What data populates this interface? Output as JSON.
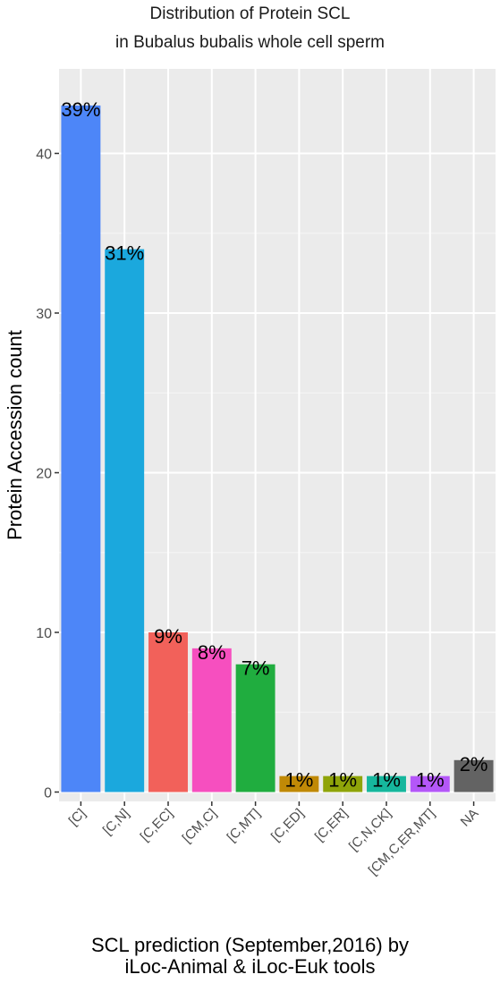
{
  "chart_data": {
    "type": "bar",
    "title": "Distribution of Protein SCL",
    "subtitle": "in Bubalus bubalis whole cell sperm",
    "xlabel_line1": "SCL prediction (September,2016) by",
    "xlabel_line2": "iLoc-Animal & iLoc-Euk tools",
    "ylabel": "Protein Accession count",
    "ylim": [
      0,
      45
    ],
    "yticks": [
      0,
      10,
      20,
      30,
      40
    ],
    "grid": true,
    "categories": [
      "[C]",
      "[C,N]",
      "[C,EC]",
      "[CM,C]",
      "[C,MT]",
      "[C,ED]",
      "[C,ER]",
      "[C,N,CK]",
      "[CM,C,ER,MT]",
      "NA"
    ],
    "values": [
      43,
      34,
      10,
      9,
      8,
      1,
      1,
      1,
      1,
      2
    ],
    "data_labels": [
      "39%",
      "31%",
      "9%",
      "8%",
      "7%",
      "1%",
      "1%",
      "1%",
      "1%",
      "2%"
    ],
    "colors": [
      "#4d86f8",
      "#1ba8dd",
      "#f2615a",
      "#f64fbf",
      "#20ad3f",
      "#c08906",
      "#8fa409",
      "#16b79d",
      "#b457f8",
      "#636363"
    ],
    "panel_background": "#ebebeb",
    "grid_color": "#ffffff"
  }
}
